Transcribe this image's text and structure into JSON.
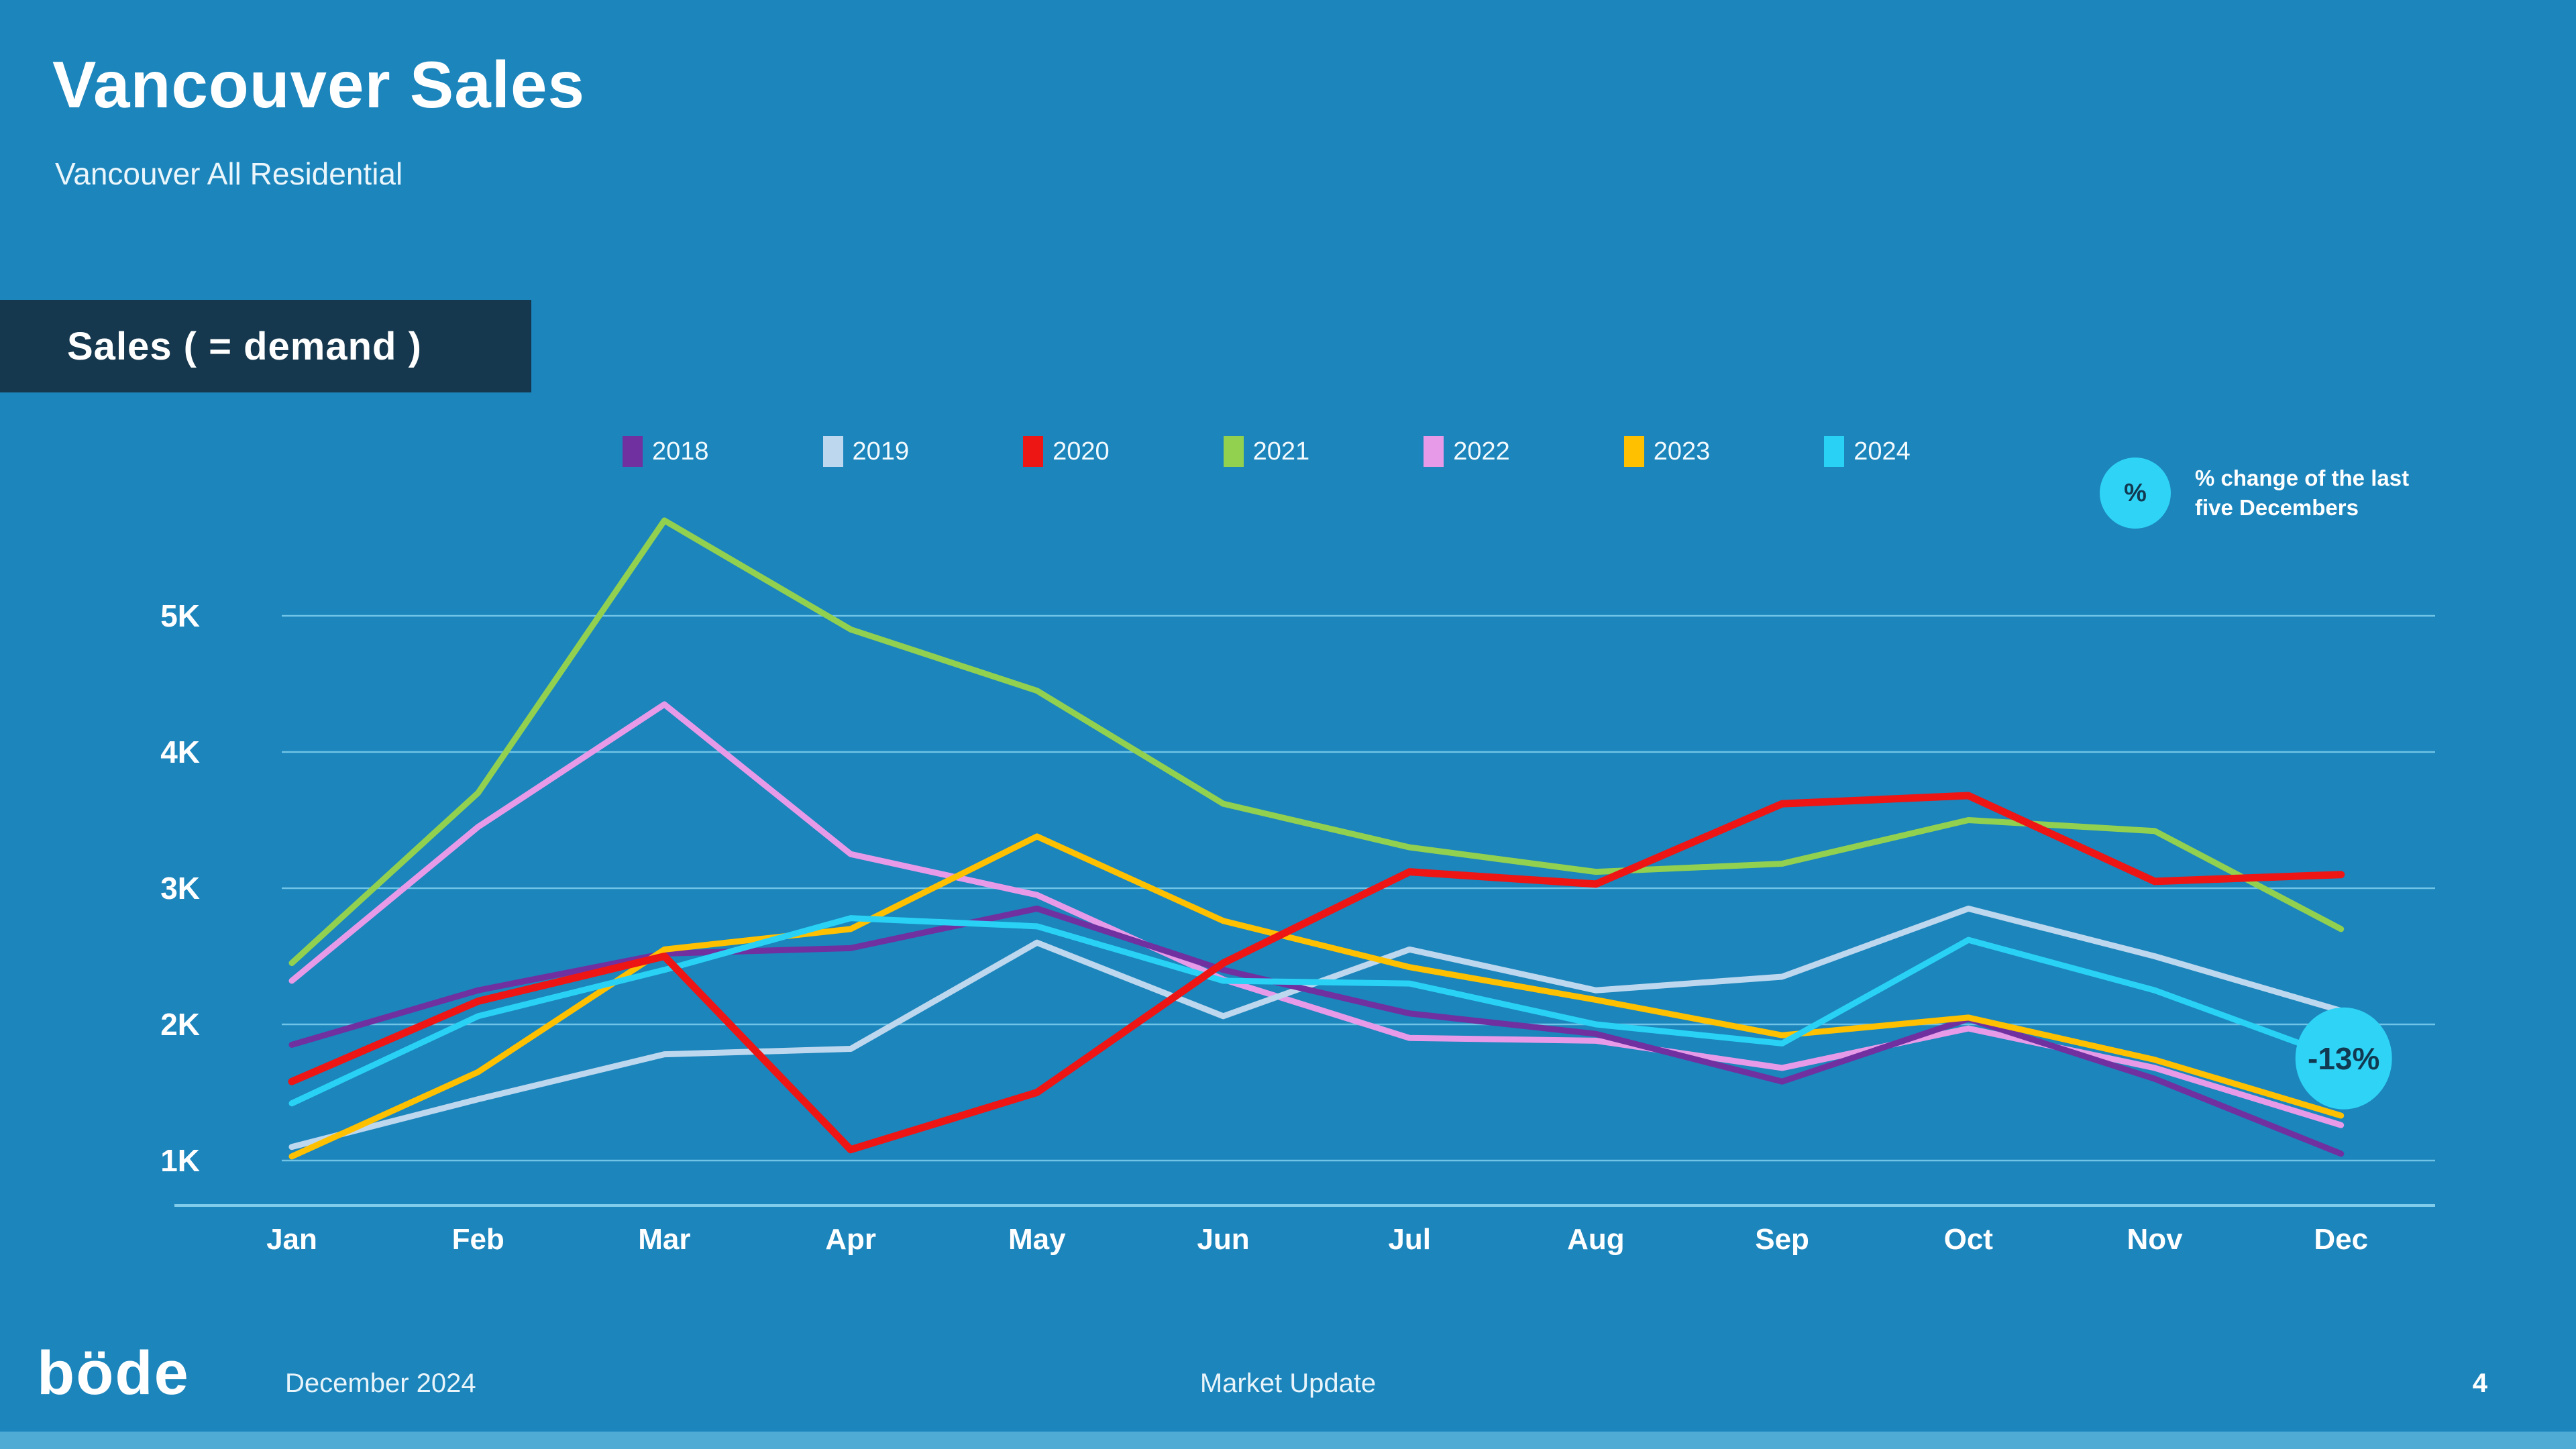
{
  "header": {
    "title": "Vancouver Sales",
    "subtitle": "Vancouver All Residential",
    "badge": "Sales ( = demand )"
  },
  "note": {
    "icon_label": "%",
    "text": "% change of the last five Decembers",
    "circle_color": "#2fd3f6",
    "icon_text_color": "#123a52"
  },
  "annotation": {
    "label": "-13%",
    "bubble_color": "#2fd3f6",
    "text_color": "#113a52"
  },
  "footer": {
    "logo": "böde",
    "date": "December 2024",
    "center": "Market Update",
    "page": "4"
  },
  "colors": {
    "background": "#1b85bc",
    "badge_background": "#16384e",
    "gridline": "#7fd0ee",
    "baseline": "#8bd4f0",
    "axis_text": "#ffffff"
  },
  "chart_data": {
    "type": "line",
    "title": "Sales ( = demand )",
    "categories": [
      "Jan",
      "Feb",
      "Mar",
      "Apr",
      "May",
      "Jun",
      "Jul",
      "Aug",
      "Sep",
      "Oct",
      "Nov",
      "Dec"
    ],
    "y_ticks": [
      "1K",
      "2K",
      "3K",
      "4K",
      "5K"
    ],
    "ylim": [
      700,
      5900
    ],
    "grid": "horizontal",
    "legend_position": "top",
    "series": [
      {
        "name": "2018",
        "color": "#7030a0",
        "values": [
          1850,
          2250,
          2520,
          2560,
          2850,
          2400,
          2080,
          1930,
          1580,
          2040,
          1600,
          1050
        ]
      },
      {
        "name": "2019",
        "color": "#bdd7ee",
        "values": [
          1100,
          1450,
          1780,
          1820,
          2600,
          2060,
          2550,
          2250,
          2350,
          2850,
          2500,
          2100
        ]
      },
      {
        "name": "2020",
        "color": "#ee1515",
        "values": [
          1580,
          2170,
          2500,
          1080,
          1500,
          2450,
          3120,
          3030,
          3620,
          3680,
          3050,
          3100
        ]
      },
      {
        "name": "2021",
        "color": "#92d050",
        "values": [
          2450,
          3700,
          5700,
          4900,
          4450,
          3620,
          3300,
          3120,
          3180,
          3500,
          3420,
          2700
        ]
      },
      {
        "name": "2022",
        "color": "#e79ae8",
        "values": [
          2320,
          3450,
          4350,
          3250,
          2950,
          2330,
          1900,
          1880,
          1680,
          1970,
          1680,
          1260
        ]
      },
      {
        "name": "2023",
        "color": "#ffc000",
        "values": [
          1030,
          1650,
          2550,
          2700,
          3380,
          2760,
          2420,
          2180,
          1920,
          2050,
          1740,
          1330
        ]
      },
      {
        "name": "2024",
        "color": "#29d2f4",
        "values": [
          1420,
          2060,
          2400,
          2780,
          2720,
          2320,
          2300,
          2000,
          1860,
          2620,
          2250,
          1750
        ]
      }
    ],
    "annotation": {
      "label": "-13%",
      "at_category": "Dec",
      "at_value": 1750
    }
  }
}
